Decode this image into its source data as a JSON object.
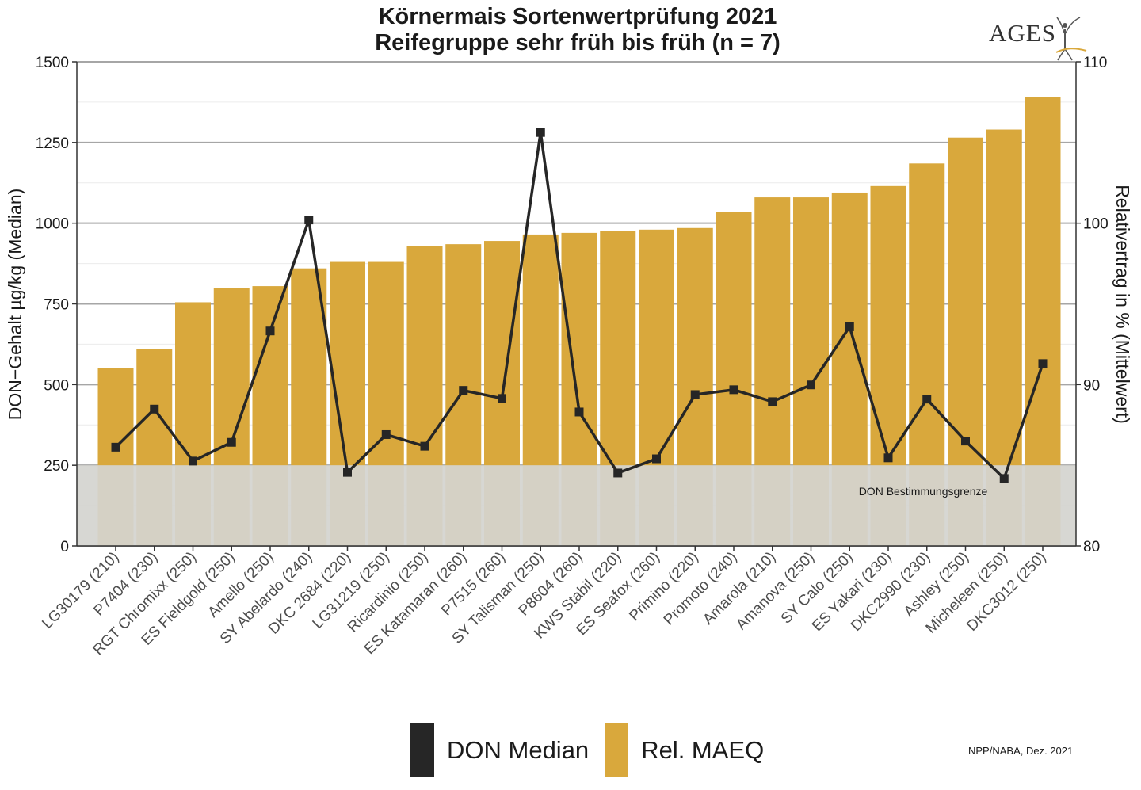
{
  "chart_data": {
    "type": "bar",
    "title": "Körnermais Sortenwertprüfung 2021",
    "subtitle": "Reifegruppe sehr früh bis früh (n = 7)",
    "logo_text": "AGES",
    "categories": [
      "LG30179 (210)",
      "P7404 (230)",
      "RGT Chromixx (250)",
      "ES Fieldgold (250)",
      "Amello (250)",
      "SY Abelardo (240)",
      "DKC 2684 (220)",
      "LG31219 (250)",
      "Ricardinio (250)",
      "ES Katamaran (260)",
      "P7515 (260)",
      "SY Talisman (250)",
      "P8604 (260)",
      "KWS Stabil (220)",
      "ES Seafox (260)",
      "Primino (220)",
      "Promoto (240)",
      "Amarola (210)",
      "Amanova (250)",
      "SY Calo (250)",
      "ES Yakari (230)",
      "DKC2990 (230)",
      "Ashley (250)",
      "Micheleen (250)",
      "DKC3012 (250)"
    ],
    "series": [
      {
        "name": "Rel. MAEQ",
        "kind": "bar",
        "axis": "right",
        "color": "#d9a83c",
        "values": [
          91.0,
          92.2,
          95.1,
          96.0,
          96.1,
          97.2,
          97.6,
          97.6,
          98.6,
          98.7,
          98.9,
          99.3,
          99.4,
          99.5,
          99.6,
          99.7,
          100.7,
          101.6,
          101.6,
          101.9,
          102.3,
          103.7,
          105.3,
          105.8,
          107.8
        ]
      },
      {
        "name": "DON Median",
        "kind": "line",
        "axis": "left",
        "color": "#262626",
        "values": [
          306,
          424,
          263,
          321,
          666,
          1010,
          228,
          345,
          309,
          482,
          457,
          1281,
          415,
          226,
          270,
          469,
          484,
          447,
          499,
          679,
          273,
          455,
          325,
          209,
          565
        ]
      }
    ],
    "ylabel": "DON−Gehalt µg/kg (Median)",
    "ylabel_right": "Relativertrag in % (Mittelwert)",
    "ylim": [
      0,
      1500
    ],
    "ylim_right": [
      80,
      110
    ],
    "yticks": [
      "0",
      "250",
      "500",
      "750",
      "1000",
      "1250",
      "1500"
    ],
    "yticks_right": [
      "80",
      "90",
      "100",
      "110"
    ],
    "band": {
      "label": "DON Bestimmungsgrenze",
      "from": 0,
      "to": 250,
      "color": "#d4d4d0"
    },
    "grid": true,
    "legend_position": "bottom",
    "footnote": "NPP/NABA, Dez. 2021"
  }
}
